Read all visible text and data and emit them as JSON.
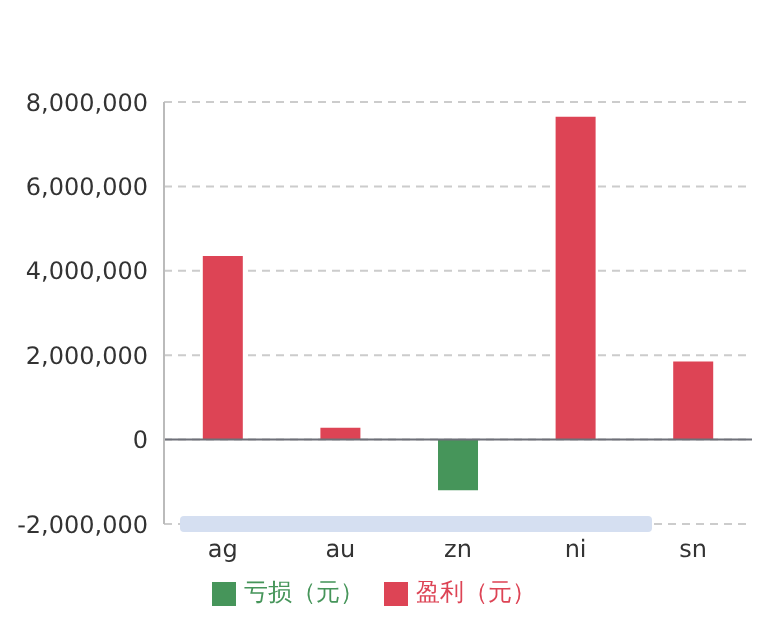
{
  "chart_data": {
    "type": "bar",
    "stacked": true,
    "categories": [
      "ag",
      "au",
      "zn",
      "ni",
      "sn"
    ],
    "series": [
      {
        "name": "盈利（元）",
        "color": "#dd4455",
        "values": [
          4350000,
          280000,
          null,
          7650000,
          1850000
        ]
      },
      {
        "name": "亏损（元）",
        "color": "#46955a",
        "values": [
          null,
          null,
          -1200000,
          null,
          null
        ]
      }
    ],
    "ylim": [
      -2000000,
      8000000
    ],
    "yticks": [
      {
        "value": -2000000,
        "label": "-2,000,000"
      },
      0,
      {
        "value": 2000000,
        "label": "2,000,000"
      },
      {
        "value": 4000000,
        "label": "4,000,000"
      },
      {
        "value": 6000000,
        "label": "6,000,000"
      },
      {
        "value": 8000000,
        "label": "8,000,000"
      }
    ],
    "grid": "y",
    "legend": "bottom"
  }
}
